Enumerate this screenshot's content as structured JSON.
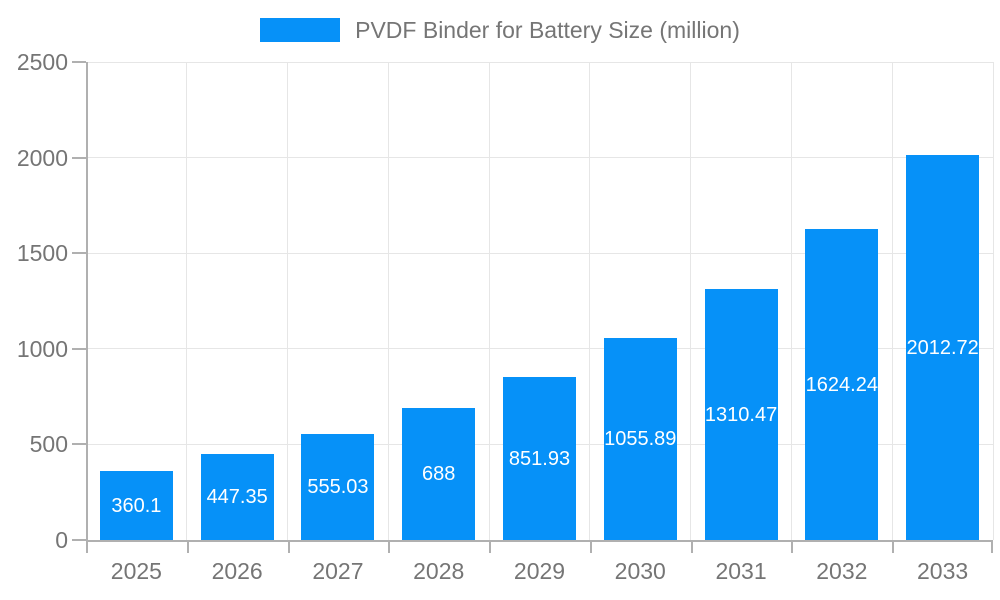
{
  "chart_data": {
    "type": "bar",
    "title": "PVDF Binder for Battery Size (million)",
    "series_name": "PVDF Binder for Battery Size (million)",
    "categories": [
      "2025",
      "2026",
      "2027",
      "2028",
      "2029",
      "2030",
      "2031",
      "2032",
      "2033"
    ],
    "values": [
      360.1,
      447.35,
      555.03,
      688,
      851.93,
      1055.89,
      1310.47,
      1624.24,
      2012.72
    ],
    "value_labels": [
      "360.1",
      "447.35",
      "555.03",
      "688",
      "851.93",
      "1055.89",
      "1310.47",
      "1624.24",
      "2012.72"
    ],
    "xlabel": "",
    "ylabel": "",
    "ylim": [
      0,
      2500
    ],
    "yticks": [
      0,
      500,
      1000,
      1500,
      2000,
      2500
    ],
    "grid": true,
    "legend_position": "top",
    "colors": {
      "bar": "#0691f8",
      "grid": "#e6e6e6",
      "axis": "#b0b0b0",
      "tick_label": "#757575",
      "title": "#757575",
      "value_label": "#ffffff",
      "background": "#ffffff"
    }
  }
}
